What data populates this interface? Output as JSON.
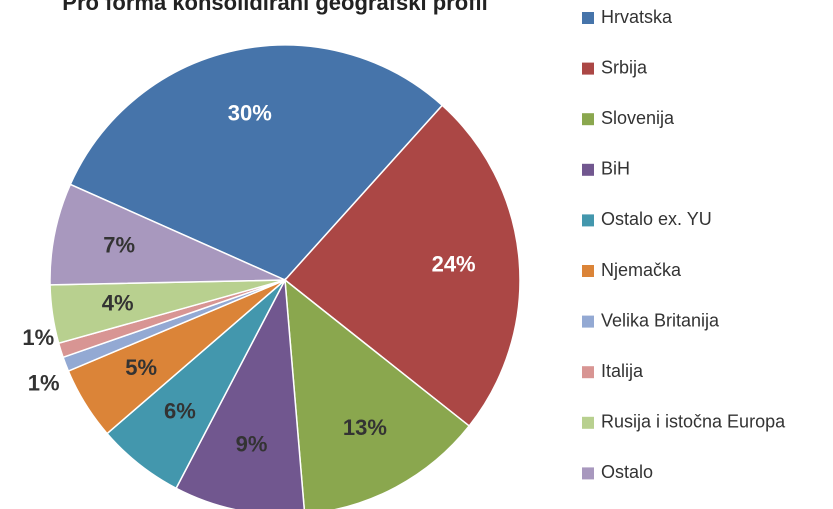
{
  "chart_data": {
    "type": "pie",
    "title": "Pro forma konsolidirani geografski profil",
    "categories": [
      "Hrvatska",
      "Srbija",
      "Slovenija",
      "BiH",
      "Ostalo ex. YU",
      "Njemačka",
      "Velika Britanija",
      "Italija",
      "Rusija i istočna Europa",
      "Ostalo"
    ],
    "values": [
      30,
      24,
      13,
      9,
      6,
      5,
      1,
      1,
      4,
      7
    ],
    "value_labels": [
      "30%",
      "24%",
      "13%",
      "9%",
      "6%",
      "5%",
      "1%",
      "1%",
      "4%",
      "7%"
    ],
    "colors": [
      "#4674aa",
      "#ab4745",
      "#8aa74e",
      "#71578f",
      "#4397ad",
      "#db8438",
      "#93a9d3",
      "#d89593",
      "#b8d08f",
      "#a898be"
    ],
    "legend": "right"
  }
}
